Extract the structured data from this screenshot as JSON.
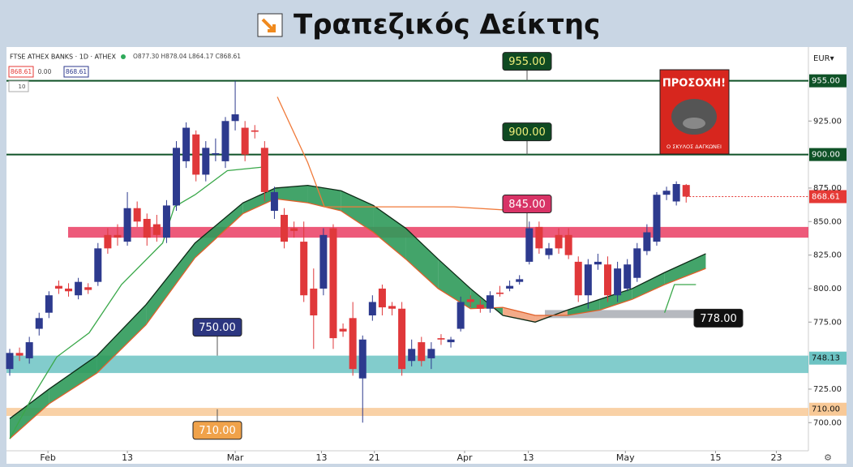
{
  "header": {
    "title": "Τραπεζικός Δείκτης"
  },
  "warning_badge": {
    "title": "ΠΡΟΣΟΧΗ!",
    "caption": "Ο ΣΚΥΛΟΣ ΔΑΓΚΩΝΕΙ"
  },
  "chart_data": {
    "type": "candlestick",
    "symbol": "FTSE ATHEX BANKS · 1D · ATHEX",
    "ohlc_label": "O877.30 H878.04 L864.17 C868.61",
    "legend_values": [
      "868.61",
      "0.00",
      "868.61"
    ],
    "volume_label": "10",
    "currency": "EUR▾",
    "xlim": [
      -0.33,
      81.47
    ],
    "xticks": [
      {
        "value": 3.9,
        "label": "Feb"
      },
      {
        "value": 12,
        "label": "13"
      },
      {
        "value": 23,
        "label": "Mar"
      },
      {
        "value": 31.8,
        "label": "13"
      },
      {
        "value": 37.2,
        "label": "21"
      },
      {
        "value": 46.4,
        "label": "Apr"
      },
      {
        "value": 52.9,
        "label": "13"
      },
      {
        "value": 62.8,
        "label": "May"
      },
      {
        "value": 72,
        "label": "15"
      },
      {
        "value": 78.2,
        "label": "23"
      }
    ],
    "ylim": [
      679,
      979
    ],
    "yticks": [
      {
        "value": 925,
        "label": "925.00"
      },
      {
        "value": 875,
        "label": "875.00"
      },
      {
        "value": 850,
        "label": "850.00"
      },
      {
        "value": 825,
        "label": "825.00"
      },
      {
        "value": 800,
        "label": "800.00"
      },
      {
        "value": 775,
        "label": "775.00"
      },
      {
        "value": 725,
        "label": "725.00"
      },
      {
        "value": 700,
        "label": "700.00"
      }
    ],
    "open": [
      740,
      752,
      748,
      770,
      782,
      802,
      800,
      795,
      801,
      805,
      840,
      840,
      835,
      860,
      852,
      848,
      838,
      862,
      895,
      915,
      885,
      900,
      895,
      925,
      920,
      918,
      905,
      858,
      855,
      845,
      835,
      800,
      800,
      845,
      770,
      778,
      733,
      780,
      800,
      787,
      785,
      746,
      760,
      748,
      763,
      760,
      770,
      792,
      788,
      785,
      797,
      800,
      805,
      820,
      846,
      825,
      840,
      840,
      820,
      795,
      818,
      818,
      795,
      800,
      808,
      828,
      835,
      870,
      865,
      877.3
    ],
    "high": [
      755,
      756,
      764,
      782,
      798,
      806,
      804,
      808,
      804,
      834,
      845,
      848,
      872,
      865,
      856,
      855,
      866,
      910,
      924,
      918,
      910,
      912,
      928,
      955,
      925,
      922,
      910,
      876,
      860,
      850,
      850,
      815,
      845,
      848,
      774,
      790,
      765,
      795,
      803,
      790,
      790,
      762,
      764,
      760,
      766,
      764,
      794,
      795,
      792,
      798,
      802,
      806,
      810,
      850,
      850,
      834,
      845,
      845,
      824,
      822,
      826,
      824,
      820,
      822,
      834,
      848,
      872,
      876,
      880,
      878.04
    ],
    "low": [
      735,
      746,
      744,
      765,
      778,
      796,
      794,
      792,
      796,
      802,
      826,
      832,
      832,
      846,
      832,
      835,
      834,
      858,
      890,
      880,
      880,
      895,
      890,
      918,
      895,
      912,
      865,
      852,
      830,
      838,
      790,
      755,
      795,
      755,
      764,
      735,
      700,
      776,
      780,
      780,
      735,
      742,
      742,
      740,
      758,
      756,
      768,
      786,
      782,
      782,
      794,
      798,
      803,
      818,
      826,
      822,
      826,
      822,
      790,
      785,
      814,
      790,
      790,
      798,
      805,
      825,
      832,
      866,
      862,
      864.17
    ],
    "close": [
      752,
      750,
      760,
      778,
      795,
      800,
      798,
      805,
      799,
      830,
      830,
      838,
      860,
      850,
      838,
      840,
      862,
      905,
      920,
      885,
      905,
      901,
      925,
      930,
      900,
      917,
      872,
      872,
      835,
      843,
      795,
      780,
      840,
      763,
      768,
      740,
      762,
      790,
      786,
      785,
      740,
      755,
      746,
      755,
      762,
      762,
      790,
      790,
      785,
      795,
      796,
      802,
      807,
      845,
      830,
      830,
      830,
      825,
      795,
      818,
      820,
      795,
      815,
      818,
      830,
      842,
      870,
      873,
      878,
      868.61
    ],
    "up_color": "#2d3a8e",
    "down_color": "#e0383a",
    "last_price": {
      "value": 868.61,
      "label": "868.61",
      "color": "#e53935"
    },
    "ribbon": {
      "x": [
        0,
        4,
        8.9,
        13.9,
        18.9,
        23.8,
        27.1,
        30.4,
        33.8,
        37.1,
        40.4,
        43.7,
        47,
        50.3,
        53.6,
        56.9,
        60.2,
        63.5,
        66.8,
        71
      ],
      "fast": [
        703,
        725,
        750,
        788,
        834,
        864,
        875,
        877,
        873,
        862,
        845,
        822,
        800,
        780,
        775,
        784,
        792,
        800,
        812,
        826
      ],
      "slow": [
        688,
        714,
        737,
        773,
        823,
        856,
        867,
        864,
        858,
        842,
        822,
        800,
        785,
        786,
        780,
        780,
        784,
        792,
        803,
        815
      ],
      "up_color": "#2f9a5a",
      "down_color": "#f2a27c"
    },
    "trail": [
      {
        "color": "#3aa84a",
        "x": [
          0,
          2.3,
          4.8,
          8.1,
          11.4,
          15.6,
          16.8,
          18.9,
          22.2,
          26.3
        ],
        "values": [
          688,
          719,
          749,
          767,
          803,
          834,
          861,
          870,
          888,
          891
        ]
      },
      {
        "color": "#f07a3a",
        "x": [
          27.3,
          30.4,
          32.1,
          45.3,
          51.9
        ],
        "values": [
          943,
          894,
          861,
          861,
          858
        ]
      },
      {
        "color": "#3aa84a",
        "x": [
          66.8,
          67.8,
          70
        ],
        "values": [
          782,
          803,
          803
        ]
      }
    ],
    "levels": [
      {
        "value": 955,
        "color": "#0f5227",
        "axis": {
          "value": 955,
          "label": "955.00"
        },
        "callout": {
          "value": 955,
          "label": "955.00",
          "color": "#0f4a22"
        }
      },
      {
        "value": 900,
        "color": "#0f5227",
        "axis": {
          "value": 900,
          "label": "900.00"
        },
        "callout": {
          "value": 900,
          "label": "900.00",
          "color": "#0f4a22"
        }
      },
      {
        "from": 838,
        "to": 846,
        "color": "#ea3d63",
        "callout": {
          "value": 845,
          "label": "845.00",
          "color": "#d83366"
        }
      },
      {
        "from": 737,
        "to": 750,
        "color": "#6cc3c3",
        "axis": {
          "value": 748.13,
          "label": "748.13"
        },
        "callout": {
          "value": 750,
          "label": "750.00",
          "color": "#2c3680"
        }
      },
      {
        "from": 705,
        "to": 711,
        "color": "#f8c997",
        "axis": {
          "value": 710,
          "label": "710.00"
        },
        "callout": {
          "value": 710,
          "label": "710.00",
          "color": "#f0a24a"
        }
      },
      {
        "from": 778,
        "to": 784,
        "color": "#a9adb4",
        "callout": {
          "value": 778,
          "label": "778.00",
          "color": "#111111"
        }
      }
    ]
  }
}
